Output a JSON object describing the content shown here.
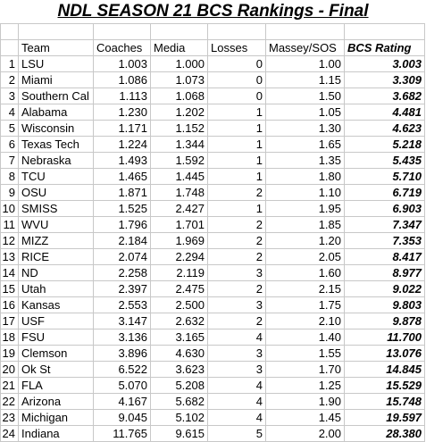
{
  "title": "NDL SEASON 21 BCS Rankings - Final",
  "headers": {
    "rank": "",
    "team": "Team",
    "coaches": "Coaches",
    "media": "Media",
    "losses": "Losses",
    "massey": "Massey/SOS",
    "bcs": "BCS Rating"
  },
  "rows": [
    {
      "rank": "1",
      "team": "LSU",
      "coaches": "1.003",
      "media": "1.000",
      "losses": "0",
      "massey": "1.00",
      "bcs": "3.003"
    },
    {
      "rank": "2",
      "team": "Miami",
      "coaches": "1.086",
      "media": "1.073",
      "losses": "0",
      "massey": "1.15",
      "bcs": "3.309"
    },
    {
      "rank": "3",
      "team": "Southern Cal",
      "coaches": "1.113",
      "media": "1.068",
      "losses": "0",
      "massey": "1.50",
      "bcs": "3.682"
    },
    {
      "rank": "4",
      "team": "Alabama",
      "coaches": "1.230",
      "media": "1.202",
      "losses": "1",
      "massey": "1.05",
      "bcs": "4.481"
    },
    {
      "rank": "5",
      "team": "Wisconsin",
      "coaches": "1.171",
      "media": "1.152",
      "losses": "1",
      "massey": "1.30",
      "bcs": "4.623"
    },
    {
      "rank": "6",
      "team": "Texas Tech",
      "coaches": "1.224",
      "media": "1.344",
      "losses": "1",
      "massey": "1.65",
      "bcs": "5.218"
    },
    {
      "rank": "7",
      "team": "Nebraska",
      "coaches": "1.493",
      "media": "1.592",
      "losses": "1",
      "massey": "1.35",
      "bcs": "5.435"
    },
    {
      "rank": "8",
      "team": "TCU",
      "coaches": "1.465",
      "media": "1.445",
      "losses": "1",
      "massey": "1.80",
      "bcs": "5.710"
    },
    {
      "rank": "9",
      "team": "OSU",
      "coaches": "1.871",
      "media": "1.748",
      "losses": "2",
      "massey": "1.10",
      "bcs": "6.719"
    },
    {
      "rank": "10",
      "team": "SMISS",
      "coaches": "1.525",
      "media": "2.427",
      "losses": "1",
      "massey": "1.95",
      "bcs": "6.903"
    },
    {
      "rank": "11",
      "team": "WVU",
      "coaches": "1.796",
      "media": "1.701",
      "losses": "2",
      "massey": "1.85",
      "bcs": "7.347"
    },
    {
      "rank": "12",
      "team": "MIZZ",
      "coaches": "2.184",
      "media": "1.969",
      "losses": "2",
      "massey": "1.20",
      "bcs": "7.353"
    },
    {
      "rank": "13",
      "team": "RICE",
      "coaches": "2.074",
      "media": "2.294",
      "losses": "2",
      "massey": "2.05",
      "bcs": "8.417"
    },
    {
      "rank": "14",
      "team": "ND",
      "coaches": "2.258",
      "media": "2.119",
      "losses": "3",
      "massey": "1.60",
      "bcs": "8.977"
    },
    {
      "rank": "15",
      "team": "Utah",
      "coaches": "2.397",
      "media": "2.475",
      "losses": "2",
      "massey": "2.15",
      "bcs": "9.022"
    },
    {
      "rank": "16",
      "team": "Kansas",
      "coaches": "2.553",
      "media": "2.500",
      "losses": "3",
      "massey": "1.75",
      "bcs": "9.803"
    },
    {
      "rank": "17",
      "team": "USF",
      "coaches": "3.147",
      "media": "2.632",
      "losses": "2",
      "massey": "2.10",
      "bcs": "9.878"
    },
    {
      "rank": "18",
      "team": "FSU",
      "coaches": "3.136",
      "media": "3.165",
      "losses": "4",
      "massey": "1.40",
      "bcs": "11.700"
    },
    {
      "rank": "19",
      "team": "Clemson",
      "coaches": "3.896",
      "media": "4.630",
      "losses": "3",
      "massey": "1.55",
      "bcs": "13.076"
    },
    {
      "rank": "20",
      "team": "Ok St",
      "coaches": "6.522",
      "media": "3.623",
      "losses": "3",
      "massey": "1.70",
      "bcs": "14.845"
    },
    {
      "rank": "21",
      "team": "FLA",
      "coaches": "5.070",
      "media": "5.208",
      "losses": "4",
      "massey": "1.25",
      "bcs": "15.529"
    },
    {
      "rank": "22",
      "team": "Arizona",
      "coaches": "4.167",
      "media": "5.682",
      "losses": "4",
      "massey": "1.90",
      "bcs": "15.748"
    },
    {
      "rank": "23",
      "team": "Michigan",
      "coaches": "9.045",
      "media": "5.102",
      "losses": "4",
      "massey": "1.45",
      "bcs": "19.597"
    },
    {
      "rank": "24",
      "team": "Indiana",
      "coaches": "11.765",
      "media": "9.615",
      "losses": "5",
      "massey": "2.00",
      "bcs": "28.380"
    }
  ]
}
